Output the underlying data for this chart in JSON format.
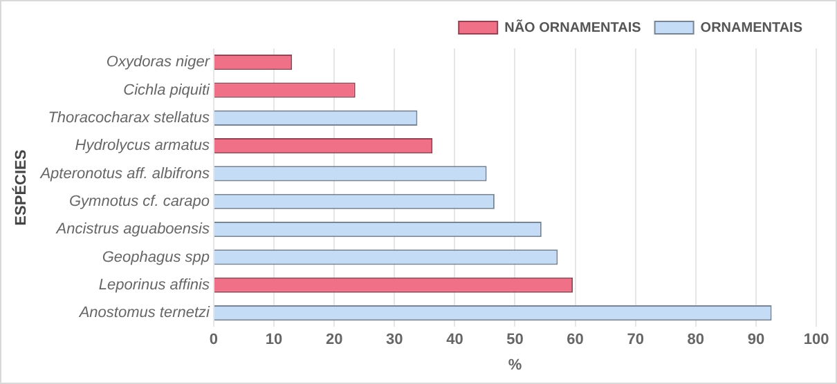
{
  "chart_data": {
    "type": "bar",
    "orientation": "horizontal",
    "categories": [
      "Oxydoras niger",
      "Cichla piquiti",
      "Thoracocharax stellatus",
      "Hydrolycus armatus",
      "Apteronotus aff. albifrons",
      "Gymnotus cf. carapo",
      "Ancistrus aguaboensis",
      "Geophagus spp",
      "Leporinus affinis",
      "Anostomus ternetzi"
    ],
    "series": [
      {
        "name": "NÃO ORNAMENTAIS",
        "color": "#f07088",
        "values": [
          13,
          23.5,
          null,
          36.3,
          null,
          null,
          null,
          null,
          59.6,
          null
        ]
      },
      {
        "name": "ORNAMENTAIS",
        "color": "#c4dcf6",
        "values": [
          null,
          null,
          33.8,
          null,
          45.3,
          46.6,
          54.4,
          57.1,
          null,
          92.6
        ]
      }
    ],
    "xlim": [
      0,
      100
    ],
    "xticks": [
      0,
      10,
      20,
      30,
      40,
      50,
      60,
      70,
      80,
      90,
      100
    ],
    "xlabel": "%",
    "ylabel": "ESPÉCIES",
    "grid": "x",
    "legend": "top right"
  }
}
